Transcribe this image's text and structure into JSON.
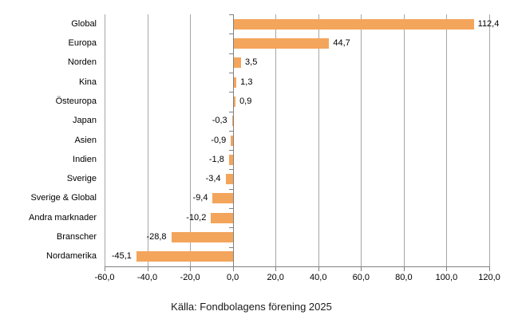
{
  "chart_data": {
    "type": "bar",
    "orientation": "horizontal",
    "title": "",
    "caption": "Källa: Fondbolagens förening 2025",
    "categories": [
      "Global",
      "Europa",
      "Norden",
      "Kina",
      "Östeuropa",
      "Japan",
      "Asien",
      "Indien",
      "Sverige",
      "Sverige & Global",
      "Andra marknader",
      "Branscher",
      "Nordamerika"
    ],
    "values": [
      112.4,
      44.7,
      3.5,
      1.3,
      0.9,
      -0.3,
      -0.9,
      -1.8,
      -3.4,
      -9.4,
      -10.2,
      -28.8,
      -45.1
    ],
    "value_labels": [
      "112,4",
      "44,7",
      "3,5",
      "1,3",
      "0,9",
      "-0,3",
      "-0,9",
      "-1,8",
      "-3,4",
      "-9,4",
      "-10,2",
      "-28,8",
      "-45,1"
    ],
    "xlim": [
      -60,
      120
    ],
    "x_tick_step": 20,
    "x_tick_labels": [
      "-60,0",
      "-40,0",
      "-20,0",
      "0,0",
      "20,0",
      "40,0",
      "60,0",
      "80,0",
      "100,0",
      "120,0"
    ],
    "grid": true,
    "legend": "none",
    "bar_color": "#f4a55c",
    "gridline_color": "#a6a6a6",
    "axis_color": "#808080",
    "text_color": "#000000"
  }
}
